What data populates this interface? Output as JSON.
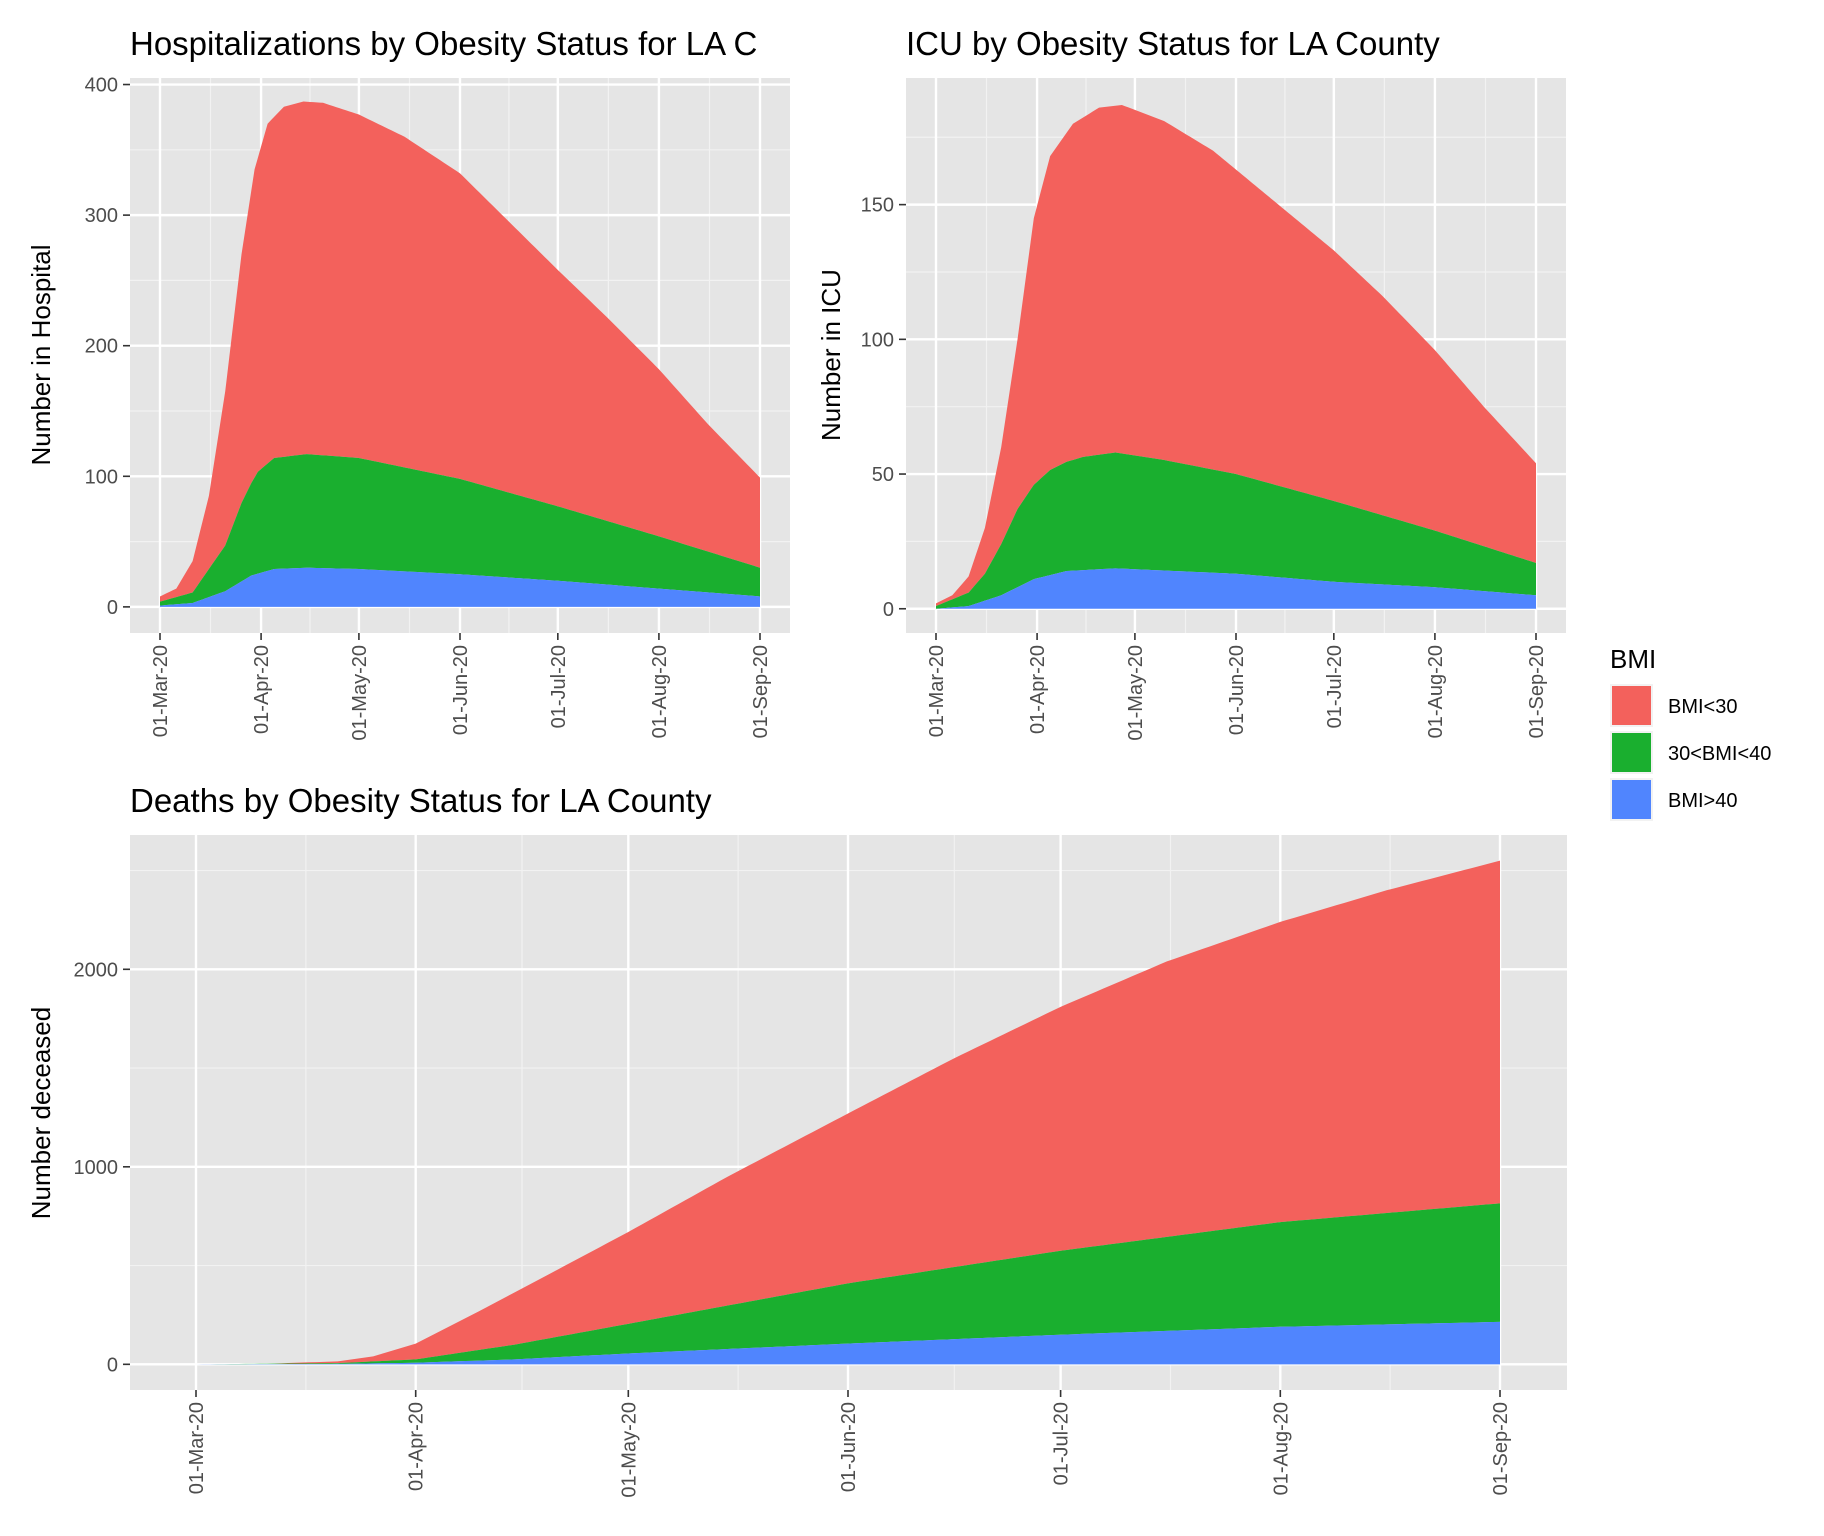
{
  "colors": {
    "panel_bg": "#E5E5E5",
    "grid_major": "#FFFFFF",
    "tick_text": "#4D4D4D",
    "BMI<30": "#F3615C",
    "30<BMI<40": "#1AAF2F",
    "BMI>40": "#5085FE"
  },
  "legend": {
    "title": "BMI",
    "items": [
      {
        "label": "BMI<30",
        "color": "#F3615C"
      },
      {
        "label": "30<BMI<40",
        "color": "#1AAF2F"
      },
      {
        "label": "BMI>40",
        "color": "#5085FE"
      }
    ]
  },
  "chart_data": [
    {
      "id": "hosp",
      "type": "area",
      "stacked": true,
      "title": "Hospitalizations by Obesity Status for LA C",
      "ylabel": "Number in Hospital",
      "xlabel": "",
      "x_range_days": [
        0,
        184
      ],
      "ylim": [
        -20,
        405
      ],
      "yticks": [
        0,
        100,
        200,
        300,
        400
      ],
      "xticks": [
        {
          "day": 0,
          "label": "01-Mar-20"
        },
        {
          "day": 31,
          "label": "01-Apr-20"
        },
        {
          "day": 61,
          "label": "01-May-20"
        },
        {
          "day": 92,
          "label": "01-Jun-20"
        },
        {
          "day": 122,
          "label": "01-Jul-20"
        },
        {
          "day": 153,
          "label": "01-Aug-20"
        },
        {
          "day": 184,
          "label": "01-Sep-20"
        }
      ],
      "totals": [
        {
          "day": 0,
          "total": 8
        },
        {
          "day": 5,
          "total": 14
        },
        {
          "day": 10,
          "total": 35
        },
        {
          "day": 15,
          "total": 85
        },
        {
          "day": 20,
          "total": 165
        },
        {
          "day": 25,
          "total": 270
        },
        {
          "day": 29,
          "total": 335
        },
        {
          "day": 33,
          "total": 370
        },
        {
          "day": 38,
          "total": 383
        },
        {
          "day": 44,
          "total": 387
        },
        {
          "day": 50,
          "total": 386
        },
        {
          "day": 61,
          "total": 377
        },
        {
          "day": 75,
          "total": 360
        },
        {
          "day": 92,
          "total": 332
        },
        {
          "day": 107,
          "total": 295
        },
        {
          "day": 122,
          "total": 258
        },
        {
          "day": 137,
          "total": 222
        },
        {
          "day": 153,
          "total": 182
        },
        {
          "day": 168,
          "total": 140
        },
        {
          "day": 184,
          "total": 99
        }
      ],
      "series": [
        {
          "name": "BMI>40",
          "points": [
            {
              "day": 0,
              "value": 1
            },
            {
              "day": 10,
              "value": 3
            },
            {
              "day": 20,
              "value": 12
            },
            {
              "day": 28,
              "value": 24
            },
            {
              "day": 35,
              "value": 29
            },
            {
              "day": 45,
              "value": 30
            },
            {
              "day": 61,
              "value": 29
            },
            {
              "day": 92,
              "value": 25
            },
            {
              "day": 122,
              "value": 20
            },
            {
              "day": 153,
              "value": 14
            },
            {
              "day": 184,
              "value": 8
            }
          ]
        },
        {
          "name": "30<BMI<40",
          "points": [
            {
              "day": 0,
              "value": 3
            },
            {
              "day": 10,
              "value": 8
            },
            {
              "day": 20,
              "value": 35
            },
            {
              "day": 25,
              "value": 60
            },
            {
              "day": 30,
              "value": 78
            },
            {
              "day": 35,
              "value": 85
            },
            {
              "day": 45,
              "value": 87
            },
            {
              "day": 61,
              "value": 85
            },
            {
              "day": 92,
              "value": 73
            },
            {
              "day": 122,
              "value": 57
            },
            {
              "day": 153,
              "value": 40
            },
            {
              "day": 184,
              "value": 22
            }
          ]
        },
        {
          "name": "BMI<30",
          "points": [
            {
              "day": 0,
              "value": 4
            },
            {
              "day": 5,
              "value": 9
            },
            {
              "day": 10,
              "value": 24
            },
            {
              "day": 15,
              "value": 56
            },
            {
              "day": 20,
              "value": 118
            },
            {
              "day": 25,
              "value": 196
            },
            {
              "day": 29,
              "value": 248
            },
            {
              "day": 33,
              "value": 273
            },
            {
              "day": 38,
              "value": 270
            },
            {
              "day": 44,
              "value": 270
            },
            {
              "day": 50,
              "value": 269
            },
            {
              "day": 61,
              "value": 263
            },
            {
              "day": 75,
              "value": 250
            },
            {
              "day": 92,
              "value": 234
            },
            {
              "day": 107,
              "value": 207
            },
            {
              "day": 122,
              "value": 181
            },
            {
              "day": 137,
              "value": 156
            },
            {
              "day": 153,
              "value": 128
            },
            {
              "day": 168,
              "value": 97
            },
            {
              "day": 184,
              "value": 69
            }
          ]
        }
      ]
    },
    {
      "id": "icu",
      "type": "area",
      "stacked": true,
      "title": "ICU by Obesity Status for LA County",
      "ylabel": "Number in ICU",
      "xlabel": "",
      "x_range_days": [
        0,
        184
      ],
      "ylim": [
        -9,
        197
      ],
      "yticks": [
        0,
        50,
        100,
        150
      ],
      "xticks": [
        {
          "day": 0,
          "label": "01-Mar-20"
        },
        {
          "day": 31,
          "label": "01-Apr-20"
        },
        {
          "day": 61,
          "label": "01-May-20"
        },
        {
          "day": 92,
          "label": "01-Jun-20"
        },
        {
          "day": 122,
          "label": "01-Jul-20"
        },
        {
          "day": 153,
          "label": "01-Aug-20"
        },
        {
          "day": 184,
          "label": "01-Sep-20"
        }
      ],
      "totals": [
        {
          "day": 0,
          "total": 2
        },
        {
          "day": 5,
          "total": 5
        },
        {
          "day": 10,
          "total": 12
        },
        {
          "day": 15,
          "total": 30
        },
        {
          "day": 20,
          "total": 60
        },
        {
          "day": 25,
          "total": 100
        },
        {
          "day": 30,
          "total": 145
        },
        {
          "day": 35,
          "total": 168
        },
        {
          "day": 42,
          "total": 180
        },
        {
          "day": 50,
          "total": 186
        },
        {
          "day": 57,
          "total": 187
        },
        {
          "day": 70,
          "total": 181
        },
        {
          "day": 85,
          "total": 170
        },
        {
          "day": 100,
          "total": 155
        },
        {
          "day": 122,
          "total": 133
        },
        {
          "day": 137,
          "total": 116
        },
        {
          "day": 153,
          "total": 96
        },
        {
          "day": 168,
          "total": 75
        },
        {
          "day": 184,
          "total": 54
        }
      ],
      "series": [
        {
          "name": "BMI>40",
          "points": [
            {
              "day": 0,
              "value": 0
            },
            {
              "day": 10,
              "value": 1
            },
            {
              "day": 20,
              "value": 5
            },
            {
              "day": 30,
              "value": 11
            },
            {
              "day": 40,
              "value": 14
            },
            {
              "day": 55,
              "value": 15
            },
            {
              "day": 92,
              "value": 13
            },
            {
              "day": 122,
              "value": 10
            },
            {
              "day": 153,
              "value": 8
            },
            {
              "day": 184,
              "value": 5
            }
          ]
        },
        {
          "name": "30<BMI<40",
          "points": [
            {
              "day": 0,
              "value": 1
            },
            {
              "day": 10,
              "value": 5
            },
            {
              "day": 15,
              "value": 10
            },
            {
              "day": 20,
              "value": 19
            },
            {
              "day": 25,
              "value": 29
            },
            {
              "day": 30,
              "value": 35
            },
            {
              "day": 35,
              "value": 39
            },
            {
              "day": 45,
              "value": 42
            },
            {
              "day": 55,
              "value": 43
            },
            {
              "day": 70,
              "value": 41
            },
            {
              "day": 92,
              "value": 37
            },
            {
              "day": 122,
              "value": 30
            },
            {
              "day": 153,
              "value": 21
            },
            {
              "day": 184,
              "value": 12
            }
          ]
        },
        {
          "name": "BMI<30",
          "points": [
            {
              "day": 0,
              "value": 1
            },
            {
              "day": 5,
              "value": 2
            },
            {
              "day": 10,
              "value": 6
            },
            {
              "day": 15,
              "value": 16
            },
            {
              "day": 20,
              "value": 36
            },
            {
              "day": 25,
              "value": 64
            },
            {
              "day": 30,
              "value": 99
            },
            {
              "day": 35,
              "value": 115
            },
            {
              "day": 42,
              "value": 123
            },
            {
              "day": 50,
              "value": 128
            },
            {
              "day": 57,
              "value": 129
            },
            {
              "day": 70,
              "value": 125
            },
            {
              "day": 85,
              "value": 117
            },
            {
              "day": 100,
              "value": 107
            },
            {
              "day": 122,
              "value": 93
            },
            {
              "day": 137,
              "value": 80
            },
            {
              "day": 153,
              "value": 67
            },
            {
              "day": 168,
              "value": 54
            },
            {
              "day": 184,
              "value": 37
            }
          ]
        }
      ]
    },
    {
      "id": "deaths",
      "type": "area",
      "stacked": true,
      "title": "Deaths by Obesity Status for LA County",
      "ylabel": "Number deceased",
      "xlabel": "",
      "x_range_days": [
        0,
        184
      ],
      "ylim": [
        -130,
        2680
      ],
      "yticks": [
        0,
        1000,
        2000
      ],
      "xticks": [
        {
          "day": 0,
          "label": "01-Mar-20"
        },
        {
          "day": 31,
          "label": "01-Apr-20"
        },
        {
          "day": 61,
          "label": "01-May-20"
        },
        {
          "day": 92,
          "label": "01-Jun-20"
        },
        {
          "day": 122,
          "label": "01-Jul-20"
        },
        {
          "day": 153,
          "label": "01-Aug-20"
        },
        {
          "day": 184,
          "label": "01-Sep-20"
        }
      ],
      "totals": [
        {
          "day": 0,
          "total": 0
        },
        {
          "day": 10,
          "total": 3
        },
        {
          "day": 20,
          "total": 15
        },
        {
          "day": 25,
          "total": 40
        },
        {
          "day": 31,
          "total": 105
        },
        {
          "day": 40,
          "total": 270
        },
        {
          "day": 50,
          "total": 460
        },
        {
          "day": 61,
          "total": 670
        },
        {
          "day": 75,
          "total": 950
        },
        {
          "day": 92,
          "total": 1270
        },
        {
          "day": 107,
          "total": 1550
        },
        {
          "day": 122,
          "total": 1810
        },
        {
          "day": 137,
          "total": 2040
        },
        {
          "day": 153,
          "total": 2240
        },
        {
          "day": 168,
          "total": 2400
        },
        {
          "day": 184,
          "total": 2550
        }
      ],
      "series": [
        {
          "name": "BMI>40",
          "points": [
            {
              "day": 0,
              "value": 0
            },
            {
              "day": 20,
              "value": 2
            },
            {
              "day": 31,
              "value": 8
            },
            {
              "day": 45,
              "value": 25
            },
            {
              "day": 61,
              "value": 55
            },
            {
              "day": 92,
              "value": 105
            },
            {
              "day": 122,
              "value": 150
            },
            {
              "day": 153,
              "value": 190
            },
            {
              "day": 184,
              "value": 215
            }
          ]
        },
        {
          "name": "30<BMI<40",
          "points": [
            {
              "day": 0,
              "value": 0
            },
            {
              "day": 20,
              "value": 4
            },
            {
              "day": 31,
              "value": 17
            },
            {
              "day": 45,
              "value": 75
            },
            {
              "day": 61,
              "value": 150
            },
            {
              "day": 92,
              "value": 305
            },
            {
              "day": 122,
              "value": 425
            },
            {
              "day": 153,
              "value": 530
            },
            {
              "day": 184,
              "value": 600
            }
          ]
        },
        {
          "name": "BMI<30",
          "points": [
            {
              "day": 0,
              "value": 0
            },
            {
              "day": 10,
              "value": 2
            },
            {
              "day": 20,
              "value": 9
            },
            {
              "day": 25,
              "value": 28
            },
            {
              "day": 31,
              "value": 80
            },
            {
              "day": 40,
              "value": 210
            },
            {
              "day": 50,
              "value": 350
            },
            {
              "day": 61,
              "value": 465
            },
            {
              "day": 75,
              "value": 680
            },
            {
              "day": 92,
              "value": 860
            },
            {
              "day": 107,
              "value": 1020
            },
            {
              "day": 122,
              "value": 1235
            },
            {
              "day": 137,
              "value": 1400
            },
            {
              "day": 153,
              "value": 1520
            },
            {
              "day": 168,
              "value": 1620
            },
            {
              "day": 184,
              "value": 1735
            }
          ]
        }
      ]
    }
  ]
}
